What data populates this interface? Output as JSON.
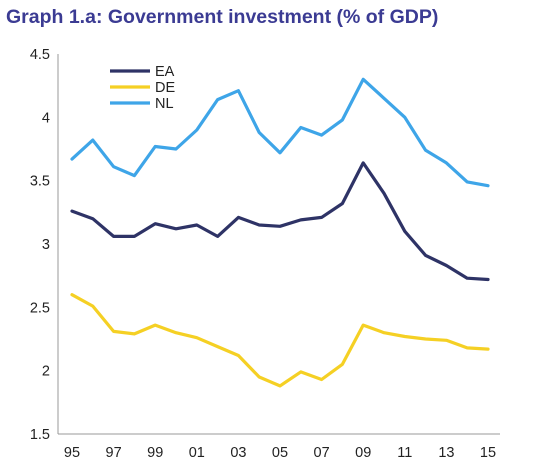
{
  "chart_data": {
    "type": "line",
    "title": "Graph 1.a: Government investment (% of GDP)",
    "title_color": "#3b3b93",
    "xlabel": "",
    "ylabel": "",
    "x": [
      1995,
      1996,
      1997,
      1998,
      1999,
      2000,
      2001,
      2002,
      2003,
      2004,
      2005,
      2006,
      2007,
      2008,
      2009,
      2010,
      2011,
      2012,
      2013,
      2014,
      2015
    ],
    "x_tick_labels": [
      "95",
      "97",
      "99",
      "01",
      "03",
      "05",
      "07",
      "09",
      "11",
      "13",
      "15"
    ],
    "y_tick_labels": [
      "1.5",
      "2",
      "2.5",
      "3",
      "3.5",
      "4",
      "4.5"
    ],
    "ylim": [
      1.5,
      4.5
    ],
    "grid": false,
    "legend_position": "top-left",
    "series": [
      {
        "name": "EA",
        "color": "#2e3366",
        "values": [
          3.26,
          3.2,
          3.06,
          3.06,
          3.16,
          3.12,
          3.15,
          3.06,
          3.21,
          3.15,
          3.14,
          3.19,
          3.21,
          3.32,
          3.64,
          3.4,
          3.1,
          2.91,
          2.83,
          2.73,
          2.72
        ]
      },
      {
        "name": "DE",
        "color": "#f5d024",
        "values": [
          2.6,
          2.51,
          2.31,
          2.29,
          2.36,
          2.3,
          2.26,
          2.19,
          2.12,
          1.95,
          1.88,
          1.99,
          1.93,
          2.05,
          2.36,
          2.3,
          2.27,
          2.25,
          2.24,
          2.18,
          2.17
        ]
      },
      {
        "name": "NL",
        "color": "#3ea5e8",
        "values": [
          3.67,
          3.82,
          3.61,
          3.54,
          3.77,
          3.75,
          3.9,
          4.14,
          4.21,
          3.88,
          3.72,
          3.92,
          3.86,
          3.98,
          4.3,
          4.15,
          4.0,
          3.74,
          3.64,
          3.49,
          3.46
        ]
      }
    ]
  }
}
